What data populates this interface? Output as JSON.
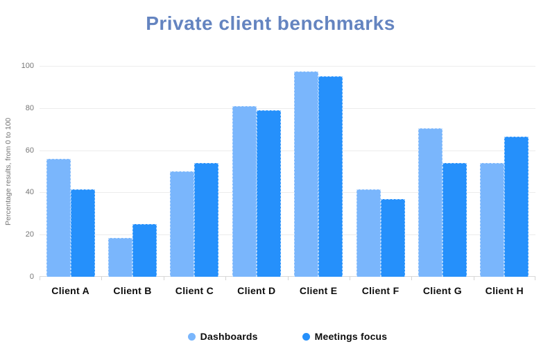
{
  "title": "Private client benchmarks",
  "colors": {
    "title_text": "#6484c0",
    "series_light": "#7ab6fc",
    "series_dark": "#2590fb",
    "gridline": "#ececec",
    "axis_line": "#d9d9d9",
    "axis_text": "#757575",
    "label_text": "#0c0c0c",
    "background": "#ffffff"
  },
  "chart_data": {
    "type": "bar",
    "title": "Private client benchmarks",
    "ylabel": "Percentage results, from 0 to 100",
    "xlabel": "",
    "categories": [
      "Client A",
      "Client B",
      "Client C",
      "Client D",
      "Client E",
      "Client F",
      "Client G",
      "Client H"
    ],
    "series": [
      {
        "name": "Dashboards",
        "color": "#7ab6fc",
        "values": [
          56,
          18.5,
          50,
          81,
          97.5,
          41.5,
          70.5,
          54
        ]
      },
      {
        "name": "Meetings focus",
        "color": "#2590fb",
        "values": [
          41.5,
          25,
          54,
          79,
          95,
          37,
          54,
          66.5
        ]
      }
    ],
    "ylim": [
      0,
      100
    ],
    "yticks": [
      0,
      20,
      40,
      60,
      80,
      100
    ],
    "grid": true,
    "legend_position": "bottom-center"
  }
}
